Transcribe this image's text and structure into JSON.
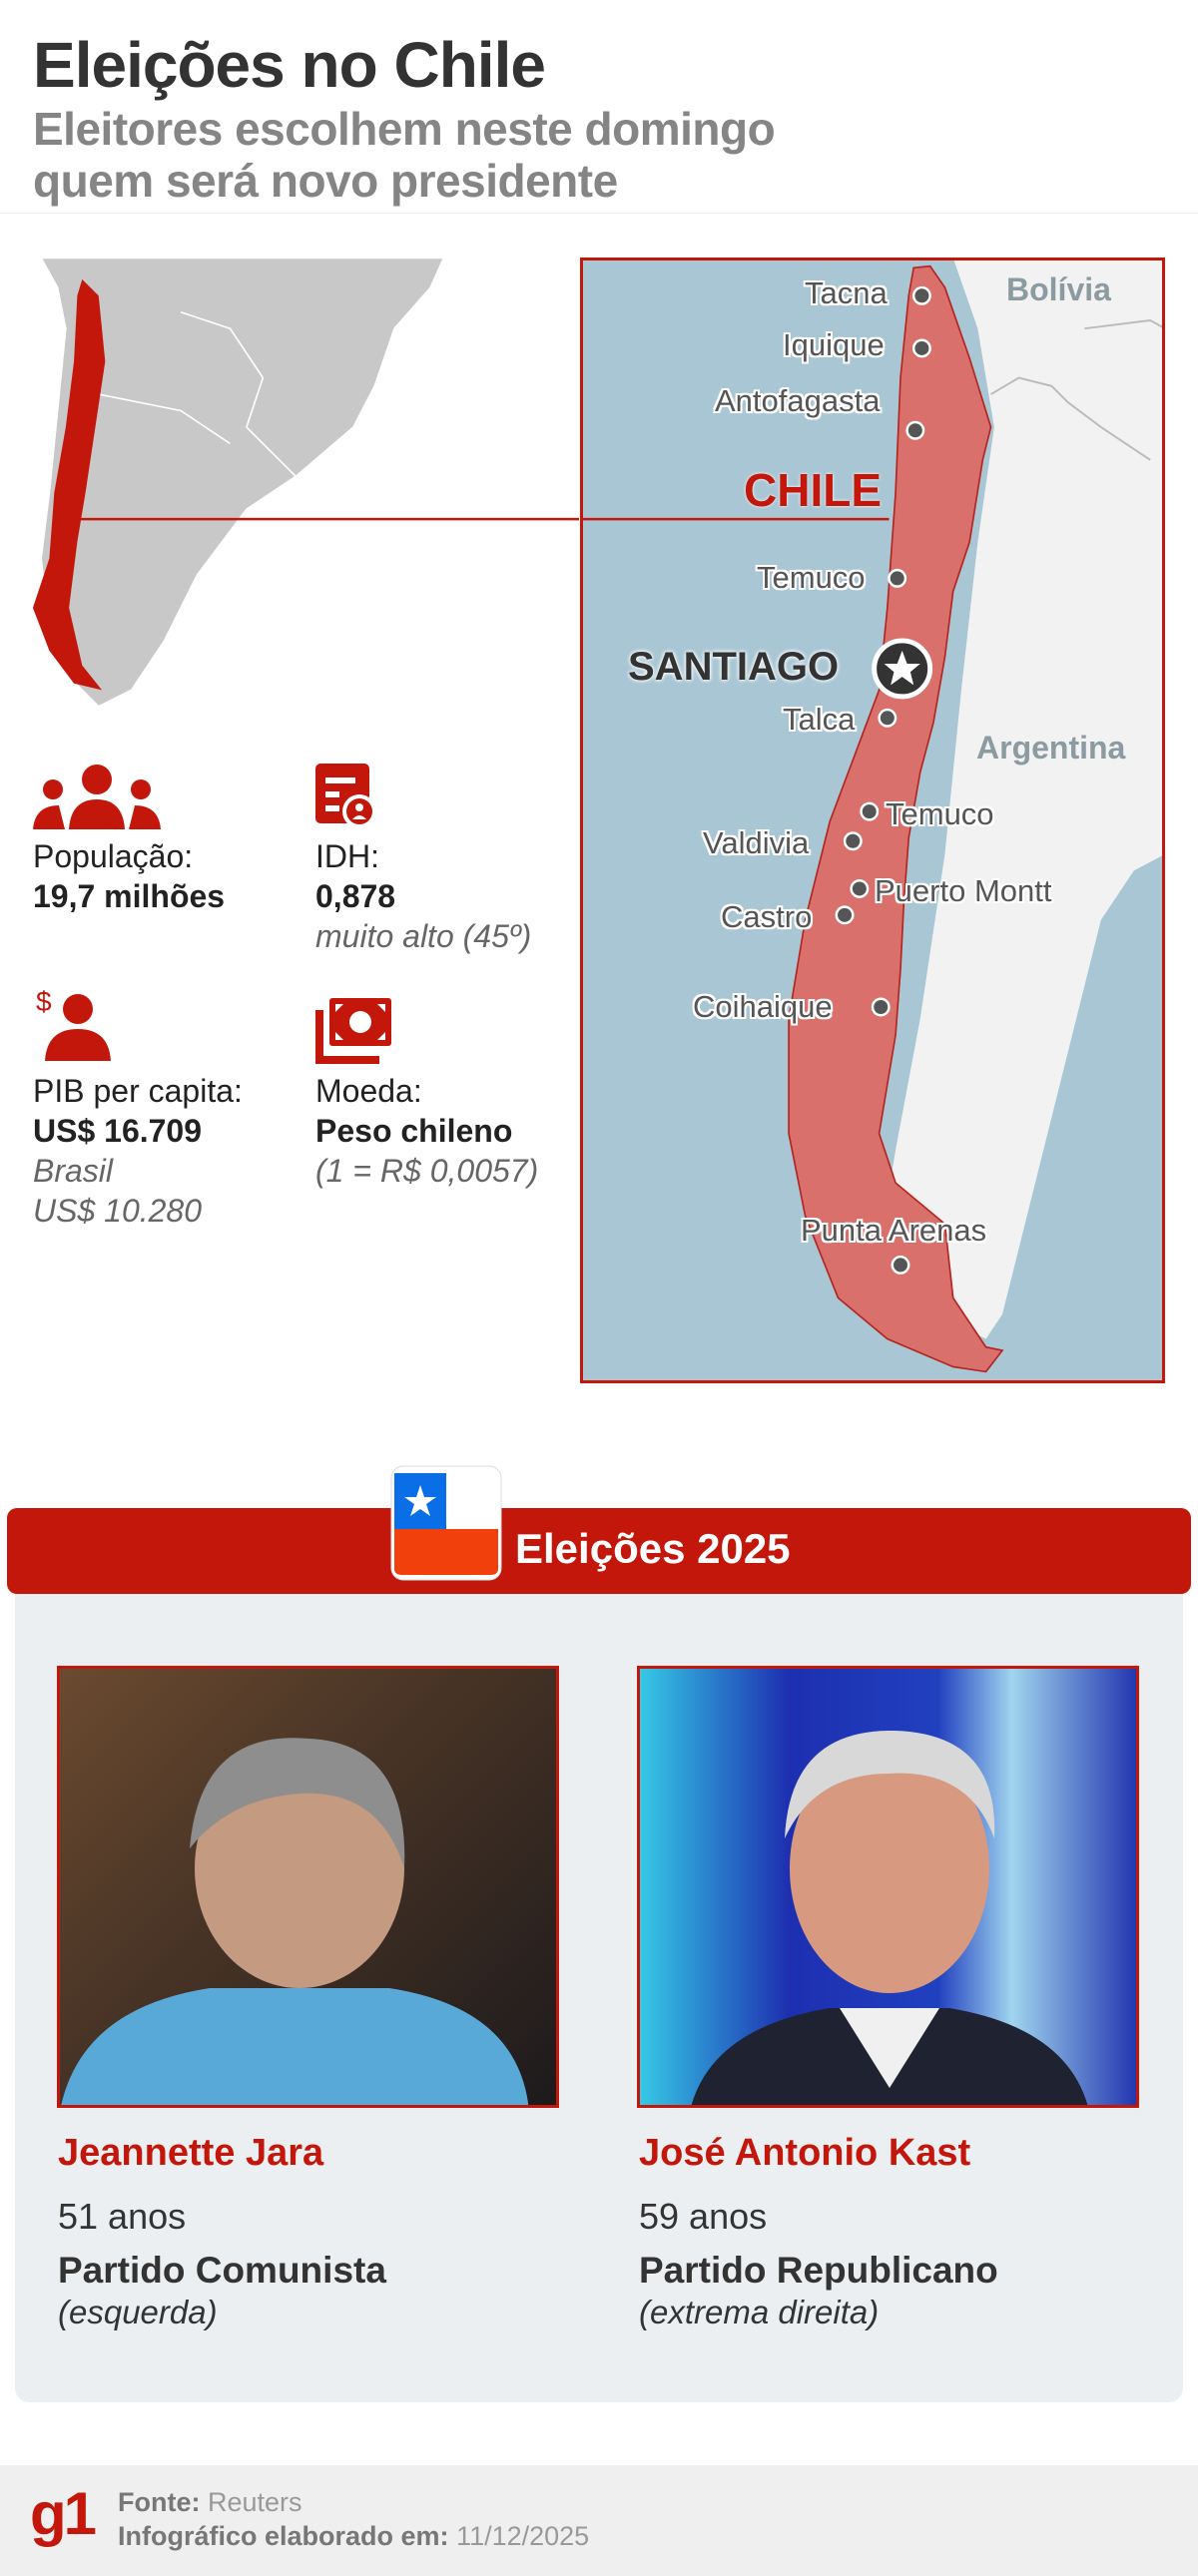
{
  "header": {
    "title": "Eleições no Chile",
    "subtitle_line1": "Eleitores escolhem neste domingo",
    "subtitle_line2": "quem será novo presidente"
  },
  "map": {
    "country_label": "CHILE",
    "capital": "SANTIAGO",
    "neighbors": [
      "Bolívia",
      "Argentina"
    ],
    "cities": [
      "Tacna",
      "Iquique",
      "Antofagasta",
      "Temuco",
      "Talca",
      "Temuco",
      "Valdivia",
      "Puerto Montt",
      "Castro",
      "Coihaique",
      "Punta Arenas"
    ],
    "colors": {
      "chile": "#d9706b",
      "sea": "#a9c6d4",
      "land": "#f2f2f2",
      "accent": "#c4170c"
    }
  },
  "stats": {
    "population": {
      "label": "População:",
      "value": "19,7 milhões",
      "icon": "people-icon"
    },
    "hdi": {
      "label": "IDH:",
      "value": "0,878",
      "note": "muito alto (45º)",
      "icon": "document-person-icon"
    },
    "gdp": {
      "label": "PIB per capita:",
      "value": "US$ 16.709",
      "note1": "Brasil",
      "note2": "US$ 10.280",
      "icon": "person-dollar-icon"
    },
    "currency": {
      "label": "Moeda:",
      "value": "Peso chileno",
      "note": "(1 = R$ 0,0057)",
      "icon": "banknotes-icon"
    }
  },
  "elections": {
    "title": "Eleições 2025",
    "candidates": [
      {
        "name": "Jeannette Jara",
        "age": "51 anos",
        "party": "Partido Comunista",
        "ideology": "(esquerda)"
      },
      {
        "name": "José Antonio Kast",
        "age": "59 anos",
        "party": "Partido Republicano",
        "ideology": "(extrema direita)"
      }
    ]
  },
  "footer": {
    "logo": "g1",
    "source_label": "Fonte:",
    "source": "Reuters",
    "date_label": "Infográfico elaborado em:",
    "date": "11/12/2025"
  }
}
